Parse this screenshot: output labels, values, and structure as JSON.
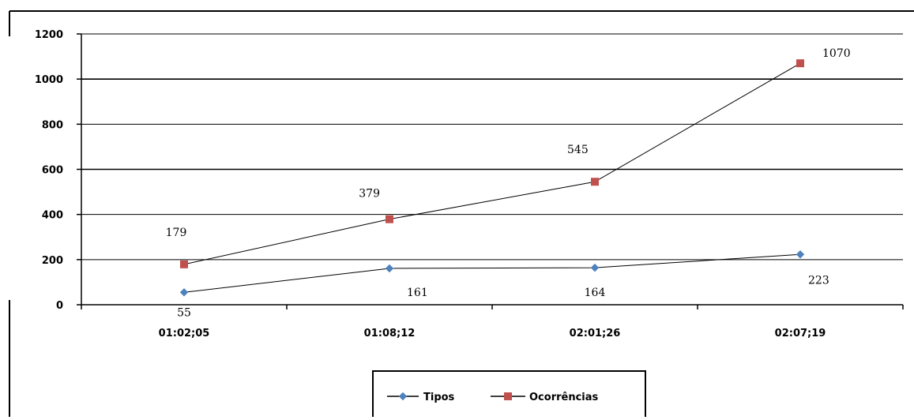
{
  "chart_data": {
    "type": "line",
    "categories": [
      "01:02;05",
      "01:08;12",
      "02:01;26",
      "02:07;19"
    ],
    "series": [
      {
        "name": "Tipos",
        "values": [
          55,
          161,
          164,
          223
        ],
        "color": "#4f81bd",
        "marker": "diamond"
      },
      {
        "name": "Ocorrências",
        "values": [
          179,
          379,
          545,
          1070
        ],
        "color": "#c0504d",
        "marker": "square"
      }
    ],
    "data_labels": {
      "Tipos": [
        "55",
        "161",
        "164",
        "223"
      ],
      "Ocorrências": [
        "179",
        "379",
        "545",
        "1070"
      ]
    },
    "ylim": [
      0,
      1200
    ],
    "yticks": [
      0,
      200,
      400,
      600,
      800,
      1000,
      1200
    ],
    "ytick_labels": [
      "0",
      "200",
      "400",
      "600",
      "800",
      "1000",
      "1200"
    ],
    "grid": "horizontal",
    "legend_position": "bottom",
    "title": "",
    "xlabel": "",
    "ylabel": ""
  }
}
